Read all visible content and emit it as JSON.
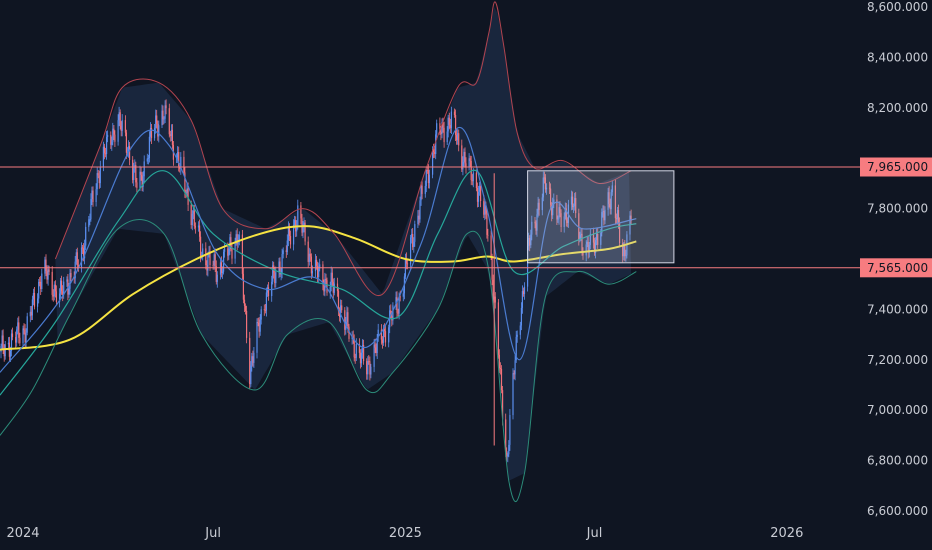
{
  "chart_data": {
    "type": "candlestick",
    "title": "",
    "xlabel": "",
    "ylabel": "",
    "y_axis": {
      "range": [
        6600,
        8600
      ],
      "ticks": [
        {
          "value": 8600,
          "label": "8,600.000"
        },
        {
          "value": 8400,
          "label": "8,400.000"
        },
        {
          "value": 8200,
          "label": "8,200.000"
        },
        {
          "value": 7800,
          "label": "7,800.000"
        },
        {
          "value": 7400,
          "label": "7,400.000"
        },
        {
          "value": 7200,
          "label": "7,200.000"
        },
        {
          "value": 7000,
          "label": "7,000.000"
        },
        {
          "value": 6800,
          "label": "6,800.000"
        },
        {
          "value": 6600,
          "label": "6,600.000"
        }
      ]
    },
    "x_axis": {
      "range": [
        "2023-12-10",
        "2026-05-20"
      ],
      "ticks": [
        {
          "date": "2024-01-01",
          "label": "2024"
        },
        {
          "date": "2024-07-01",
          "label": "Jul"
        },
        {
          "date": "2025-01-01",
          "label": "2025"
        },
        {
          "date": "2025-07-01",
          "label": "Jul"
        },
        {
          "date": "2026-01-01",
          "label": "2026"
        }
      ]
    },
    "horizontal_levels": [
      {
        "value": 7965,
        "label": "7,965.000",
        "color": "#f77c80"
      },
      {
        "value": 7565,
        "label": "7,565.000",
        "color": "#f77c80"
      }
    ],
    "range_box": {
      "x_start": "2025-04-28",
      "x_end": "2025-09-15",
      "y_low": 7585,
      "y_high": 7950
    },
    "vertical_marker": {
      "date": "2025-03-27"
    },
    "price_keypoints": [
      [
        "2023-12-10",
        7230
      ],
      [
        "2024-01-05",
        7330
      ],
      [
        "2024-01-20",
        7560
      ],
      [
        "2024-02-05",
        7450
      ],
      [
        "2024-02-25",
        7600
      ],
      [
        "2024-03-15",
        7980
      ],
      [
        "2024-04-01",
        8150
      ],
      [
        "2024-04-10",
        8050
      ],
      [
        "2024-04-20",
        7870
      ],
      [
        "2024-05-05",
        8120
      ],
      [
        "2024-05-15",
        8180
      ],
      [
        "2024-05-30",
        7970
      ],
      [
        "2024-06-20",
        7630
      ],
      [
        "2024-07-05",
        7550
      ],
      [
        "2024-07-25",
        7700
      ],
      [
        "2024-08-05",
        7160
      ],
      [
        "2024-08-20",
        7450
      ],
      [
        "2024-09-05",
        7600
      ],
      [
        "2024-09-20",
        7780
      ],
      [
        "2024-10-05",
        7560
      ],
      [
        "2024-10-25",
        7480
      ],
      [
        "2024-11-10",
        7280
      ],
      [
        "2024-11-25",
        7170
      ],
      [
        "2024-12-10",
        7300
      ],
      [
        "2024-12-25",
        7420
      ],
      [
        "2025-01-15",
        7820
      ],
      [
        "2025-02-01",
        8100
      ],
      [
        "2025-02-15",
        8150
      ],
      [
        "2025-02-25",
        8000
      ],
      [
        "2025-03-10",
        7900
      ],
      [
        "2025-03-22",
        7700
      ],
      [
        "2025-04-08",
        6800
      ],
      [
        "2025-04-18",
        7300
      ],
      [
        "2025-05-01",
        7700
      ],
      [
        "2025-05-15",
        7900
      ],
      [
        "2025-05-28",
        7750
      ],
      [
        "2025-06-10",
        7820
      ],
      [
        "2025-06-22",
        7620
      ],
      [
        "2025-07-05",
        7700
      ],
      [
        "2025-07-18",
        7880
      ],
      [
        "2025-07-28",
        7600
      ],
      [
        "2025-08-05",
        7780
      ]
    ],
    "series": [
      {
        "role": "sma_long",
        "color": "#f5e342",
        "points": [
          [
            "2023-12-10",
            7240
          ],
          [
            "2024-02-15",
            7280
          ],
          [
            "2024-04-15",
            7460
          ],
          [
            "2024-06-15",
            7600
          ],
          [
            "2024-08-15",
            7700
          ],
          [
            "2024-10-01",
            7730
          ],
          [
            "2024-11-15",
            7680
          ],
          [
            "2025-01-01",
            7600
          ],
          [
            "2025-02-15",
            7590
          ],
          [
            "2025-03-20",
            7610
          ],
          [
            "2025-04-15",
            7590
          ],
          [
            "2025-06-01",
            7620
          ],
          [
            "2025-07-15",
            7640
          ],
          [
            "2025-08-10",
            7670
          ]
        ]
      },
      {
        "role": "sma_mid",
        "color": "#26a69a",
        "points": [
          [
            "2023-12-10",
            7060
          ],
          [
            "2024-02-01",
            7350
          ],
          [
            "2024-04-01",
            7750
          ],
          [
            "2024-05-15",
            7950
          ],
          [
            "2024-07-01",
            7700
          ],
          [
            "2024-09-01",
            7550
          ],
          [
            "2024-11-01",
            7480
          ],
          [
            "2024-12-25",
            7370
          ],
          [
            "2025-02-01",
            7700
          ],
          [
            "2025-03-10",
            7950
          ],
          [
            "2025-04-15",
            7550
          ],
          [
            "2025-06-01",
            7650
          ],
          [
            "2025-07-15",
            7720
          ],
          [
            "2025-08-10",
            7740
          ]
        ]
      },
      {
        "role": "sma_short",
        "color": "#4a7bd0",
        "points": [
          [
            "2023-12-10",
            7150
          ],
          [
            "2024-02-15",
            7500
          ],
          [
            "2024-04-15",
            8050
          ],
          [
            "2024-05-20",
            8050
          ],
          [
            "2024-07-05",
            7620
          ],
          [
            "2024-08-20",
            7480
          ],
          [
            "2024-10-10",
            7520
          ],
          [
            "2024-11-25",
            7250
          ],
          [
            "2025-01-15",
            7650
          ],
          [
            "2025-02-20",
            8120
          ],
          [
            "2025-03-20",
            7800
          ],
          [
            "2025-04-20",
            7200
          ],
          [
            "2025-05-20",
            7800
          ],
          [
            "2025-06-20",
            7720
          ],
          [
            "2025-08-10",
            7760
          ]
        ]
      },
      {
        "role": "band_upper",
        "color": "#b2444f",
        "points": [
          [
            "2024-02-01",
            7600
          ],
          [
            "2024-03-15",
            8050
          ],
          [
            "2024-04-05",
            8280
          ],
          [
            "2024-05-10",
            8300
          ],
          [
            "2024-06-10",
            8150
          ],
          [
            "2024-07-10",
            7800
          ],
          [
            "2024-08-20",
            7720
          ],
          [
            "2024-09-25",
            7800
          ],
          [
            "2024-10-25",
            7700
          ],
          [
            "2024-12-10",
            7460
          ],
          [
            "2025-01-20",
            7950
          ],
          [
            "2025-02-20",
            8280
          ],
          [
            "2025-03-10",
            8300
          ],
          [
            "2025-03-22",
            8500
          ],
          [
            "2025-03-28",
            8620
          ],
          [
            "2025-04-05",
            8450
          ],
          [
            "2025-04-18",
            8100
          ],
          [
            "2025-05-05",
            7960
          ],
          [
            "2025-06-01",
            7990
          ],
          [
            "2025-07-05",
            7900
          ],
          [
            "2025-08-05",
            7950
          ]
        ]
      },
      {
        "role": "band_lower",
        "color": "#2c8c7a",
        "points": [
          [
            "2023-12-10",
            6900
          ],
          [
            "2024-01-10",
            7080
          ],
          [
            "2024-02-15",
            7380
          ],
          [
            "2024-04-01",
            7720
          ],
          [
            "2024-05-15",
            7700
          ],
          [
            "2024-06-20",
            7300
          ],
          [
            "2024-08-10",
            7080
          ],
          [
            "2024-09-10",
            7300
          ],
          [
            "2024-10-20",
            7350
          ],
          [
            "2024-11-25",
            7080
          ],
          [
            "2024-12-20",
            7150
          ],
          [
            "2025-02-01",
            7400
          ],
          [
            "2025-03-01",
            7700
          ],
          [
            "2025-03-22",
            7550
          ],
          [
            "2025-04-10",
            6720
          ],
          [
            "2025-04-25",
            6750
          ],
          [
            "2025-05-15",
            7450
          ],
          [
            "2025-06-15",
            7550
          ],
          [
            "2025-07-15",
            7500
          ],
          [
            "2025-08-10",
            7550
          ]
        ]
      }
    ]
  }
}
